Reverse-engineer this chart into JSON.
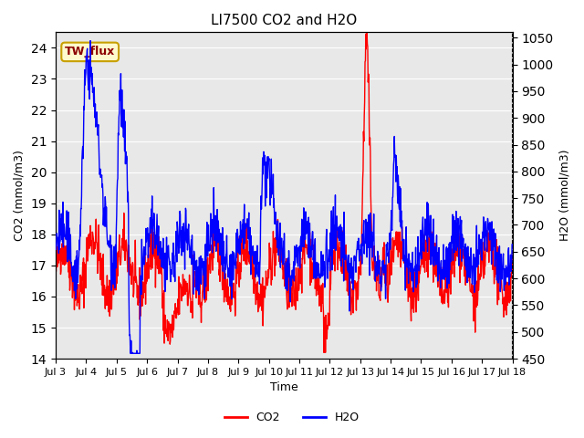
{
  "title": "LI7500 CO2 and H2O",
  "xlabel": "Time",
  "ylabel_left": "CO2 (mmol/m3)",
  "ylabel_right": "H2O (mmol/m3)",
  "annotation_text": "TW_flux",
  "annotation_color": "#8B0000",
  "annotation_bg": "#FFFACD",
  "annotation_edge": "#C8A000",
  "co2_color": "red",
  "h2o_color": "blue",
  "ylim_left": [
    14.0,
    24.5
  ],
  "ylim_right": [
    450,
    1060
  ],
  "yticks_left": [
    14.0,
    15.0,
    16.0,
    17.0,
    18.0,
    19.0,
    20.0,
    21.0,
    22.0,
    23.0,
    24.0
  ],
  "yticks_right": [
    450,
    500,
    550,
    600,
    650,
    700,
    750,
    800,
    850,
    900,
    950,
    1000,
    1050
  ],
  "xtick_labels": [
    "Jul 3",
    "Jul 4",
    "Jul 5",
    "Jul 6",
    "Jul 7",
    "Jul 8",
    "Jul 9",
    "Jul 10",
    "Jul 11",
    "Jul 12",
    "Jul 13",
    "Jul 14",
    "Jul 15",
    "Jul 16",
    "Jul 17",
    "Jul 18"
  ],
  "bg_color": "#E8E8E8",
  "line_width": 1.0,
  "legend_entries": [
    "CO2",
    "H2O"
  ]
}
